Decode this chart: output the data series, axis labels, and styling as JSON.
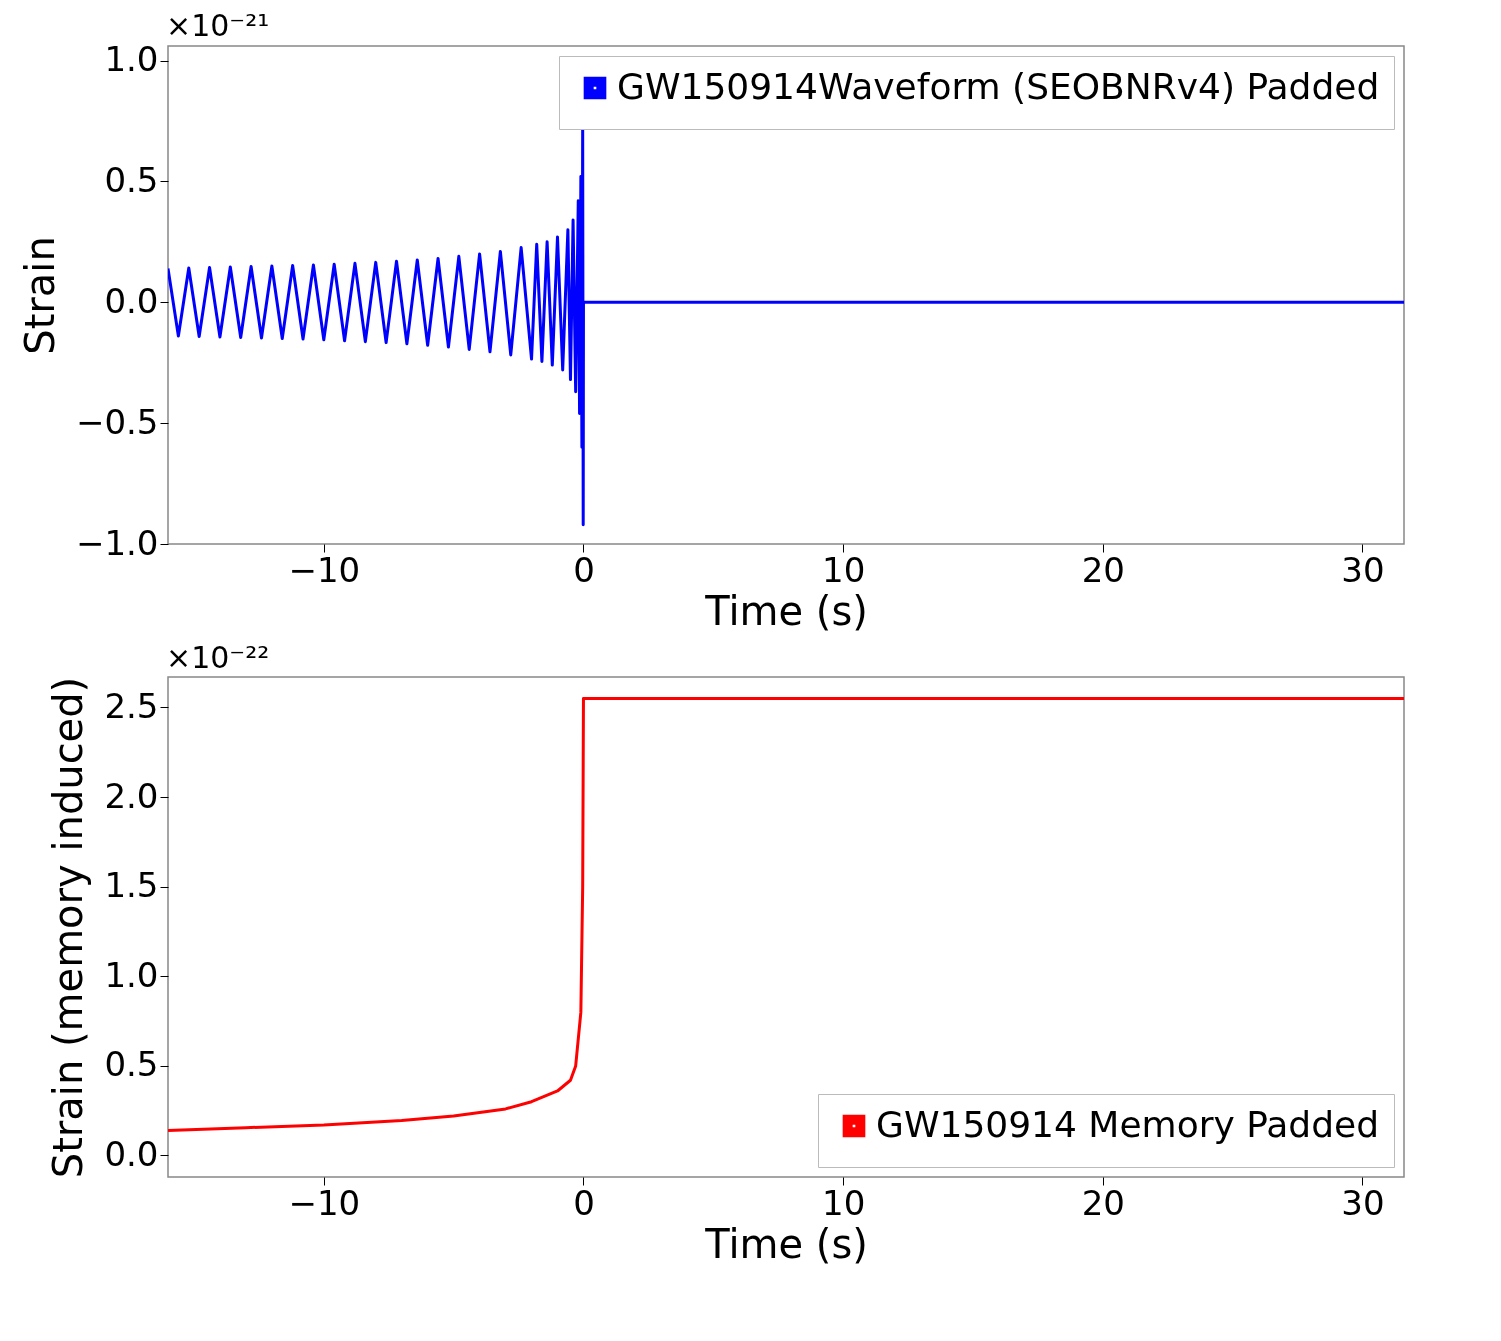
{
  "chart_data": [
    {
      "type": "line",
      "xlabel": "Time (s)",
      "ylabel": "Strain",
      "annotations": [
        "×10⁻²¹"
      ],
      "xlim": [
        -16,
        31.6
      ],
      "ylim": [
        -1.0,
        1.06
      ],
      "xticks": [
        {
          "value": -10,
          "label": "−10"
        },
        0,
        10,
        20,
        30
      ],
      "yticks": [
        {
          "value": -1,
          "label": "−1.0"
        },
        {
          "value": -0.5,
          "label": "−0.5"
        },
        {
          "value": 0,
          "label": "0.0"
        },
        0.5,
        {
          "value": 1,
          "label": "1.0"
        }
      ],
      "legend": "top right",
      "grid": false,
      "series": [
        {
          "name": "GW150914Waveform (SEOBNRv4) Padded",
          "color": "#0000ff",
          "x": [
            -16,
            -15.6,
            -15.2,
            -14.8,
            -14.4,
            -14,
            -13.6,
            -13.2,
            -12.8,
            -12.4,
            -12,
            -11.6,
            -11.2,
            -10.8,
            -10.4,
            -10,
            -9.6,
            -9.2,
            -8.8,
            -8.4,
            -8,
            -7.6,
            -7.2,
            -6.8,
            -6.4,
            -6,
            -5.6,
            -5.2,
            -4.8,
            -4.4,
            -4,
            -3.6,
            -3.2,
            -2.8,
            -2.4,
            -2,
            -1.8,
            -1.6,
            -1.4,
            -1.2,
            -1,
            -0.8,
            -0.6,
            -0.5,
            -0.4,
            -0.3,
            -0.2,
            -0.15,
            -0.1,
            -0.06,
            -0.03,
            -0.01,
            0,
            31.6
          ],
          "values": [
            0.14,
            -0.14,
            0.142,
            -0.142,
            0.144,
            -0.144,
            0.146,
            -0.146,
            0.148,
            -0.148,
            0.15,
            -0.15,
            0.152,
            -0.152,
            0.154,
            -0.155,
            0.157,
            -0.159,
            0.161,
            -0.163,
            0.165,
            -0.167,
            0.17,
            -0.172,
            0.175,
            -0.178,
            0.181,
            -0.185,
            0.19,
            -0.195,
            0.2,
            -0.205,
            0.21,
            -0.218,
            0.226,
            -0.235,
            0.24,
            -0.245,
            0.25,
            -0.26,
            0.27,
            -0.28,
            0.3,
            -0.32,
            0.34,
            -0.37,
            0.42,
            -0.46,
            0.52,
            -0.6,
            0.72,
            -0.92,
            0,
            0
          ]
        }
      ]
    },
    {
      "type": "line",
      "xlabel": "Time (s)",
      "ylabel": "Strain (memory induced)",
      "annotations": [
        "×10⁻²²"
      ],
      "xlim": [
        -16,
        31.6
      ],
      "ylim": [
        -0.12,
        2.67
      ],
      "xticks": [
        {
          "value": -10,
          "label": "−10"
        },
        0,
        10,
        20,
        30
      ],
      "yticks": [
        {
          "value": 0,
          "label": "0.0"
        },
        0.5,
        {
          "value": 1,
          "label": "1.0"
        },
        1.5,
        {
          "value": 2,
          "label": "2.0"
        },
        2.5
      ],
      "legend": "bottom right",
      "grid": false,
      "series": [
        {
          "name": "GW150914 Memory Padded",
          "color": "#ff0000",
          "x": [
            -16,
            -13,
            -10,
            -7,
            -5,
            -3,
            -2,
            -1,
            -0.5,
            -0.3,
            -0.1,
            -0.03,
            0,
            31.6
          ],
          "values": [
            0.14,
            0.155,
            0.17,
            0.195,
            0.22,
            0.26,
            0.3,
            0.36,
            0.42,
            0.5,
            0.8,
            1.5,
            2.55,
            2.55
          ]
        }
      ]
    }
  ]
}
